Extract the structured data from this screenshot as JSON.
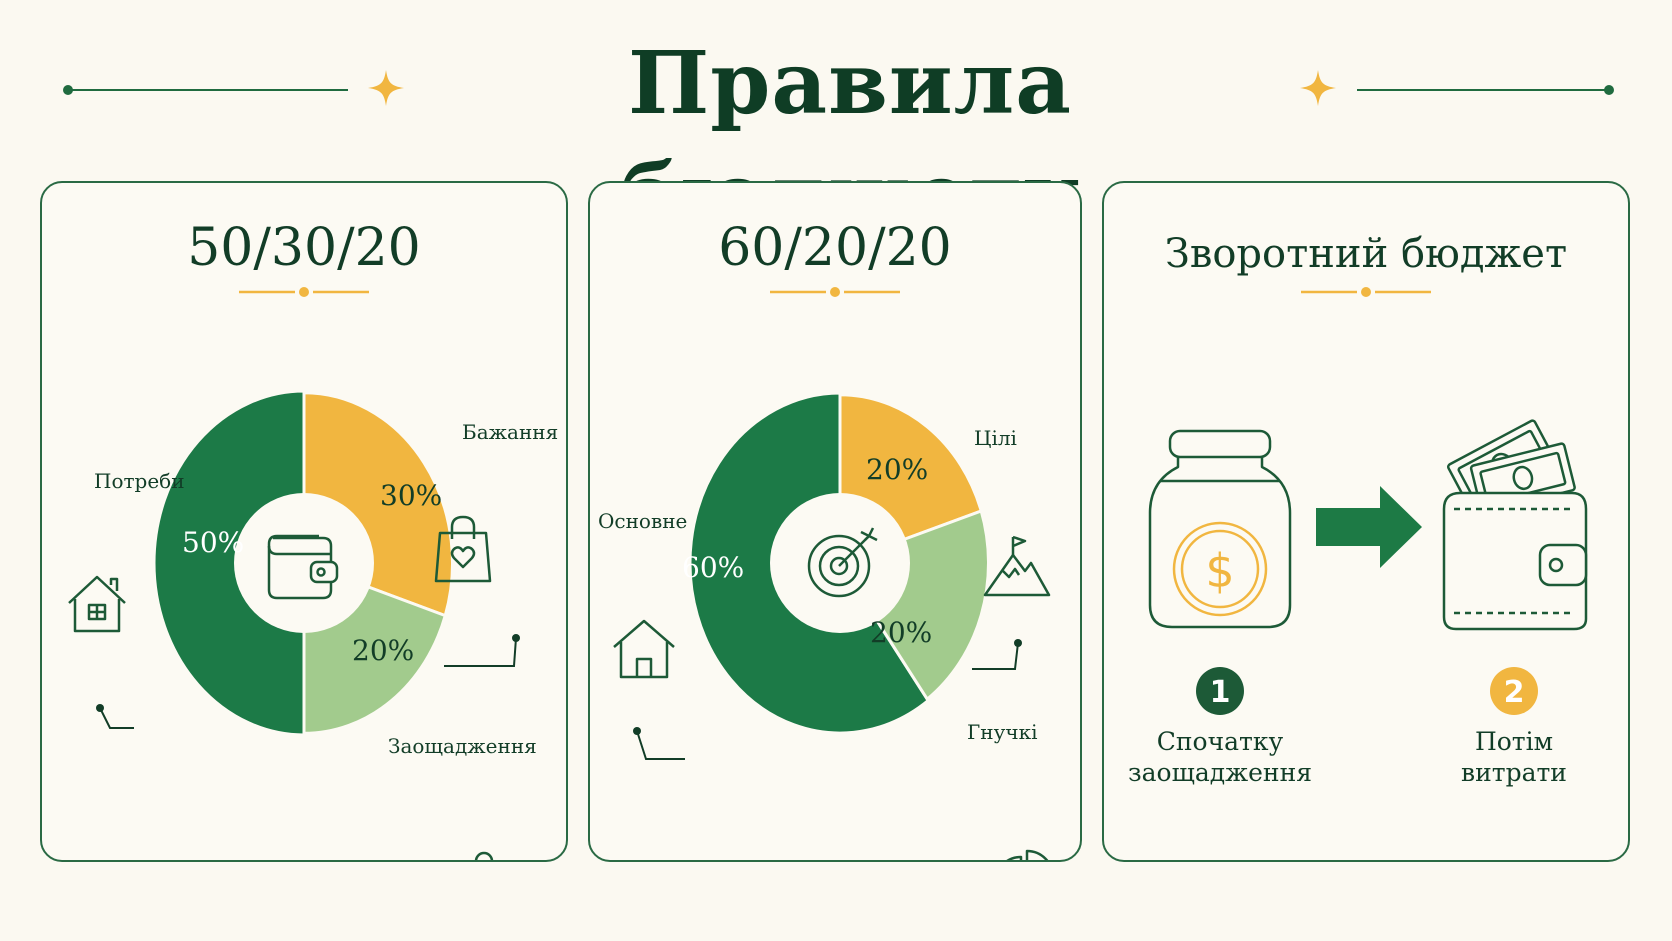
{
  "page": {
    "title": "Правила бюджету"
  },
  "colors": {
    "dark_green": "#1c7a47",
    "yellow": "#f1b640",
    "light_green": "#a2cb8d",
    "ink": "#123d27",
    "accent": "#f1b640"
  },
  "chart_data": [
    {
      "type": "pie",
      "title": "50/30/20",
      "center_icon": "wallet-icon",
      "slices": [
        {
          "label": "Потреби",
          "value": 50,
          "value_label": "50%",
          "color": "#1c7a47",
          "icon": "house-icon"
        },
        {
          "label": "Бажання",
          "value": 30,
          "value_label": "30%",
          "color": "#f1b640",
          "icon": "shopping-bag-icon"
        },
        {
          "label": "Заощадження",
          "value": 20,
          "value_label": "20%",
          "color": "#a2cb8d",
          "icon": "piggy-bank-icon"
        }
      ]
    },
    {
      "type": "pie",
      "title": "60/20/20",
      "center_icon": "target-icon",
      "slices": [
        {
          "label": "Основне",
          "value": 60,
          "value_label": "60%",
          "color": "#1c7a47",
          "icon": "house-icon"
        },
        {
          "label": "Цілі",
          "value": 20,
          "value_label": "20%",
          "color": "#f1b640",
          "icon": "mountain-flag-icon"
        },
        {
          "label": "Гнучкі",
          "value": 20,
          "value_label": "20%",
          "color": "#a2cb8d",
          "icon": "pie-chart-icon"
        }
      ]
    }
  ],
  "reverse_budget": {
    "title": "Зворотний бюджет",
    "steps": [
      {
        "number": "1",
        "label_line1": "Спочатку",
        "label_line2": "заощадження",
        "icon": "jar-with-coin-icon",
        "color": "#1d5a37"
      },
      {
        "number": "2",
        "label_line1": "Потім",
        "label_line2": "витрати",
        "icon": "wallet-with-cash-icon",
        "color": "#f1b640"
      }
    ],
    "arrow_icon": "arrow-right-icon"
  }
}
